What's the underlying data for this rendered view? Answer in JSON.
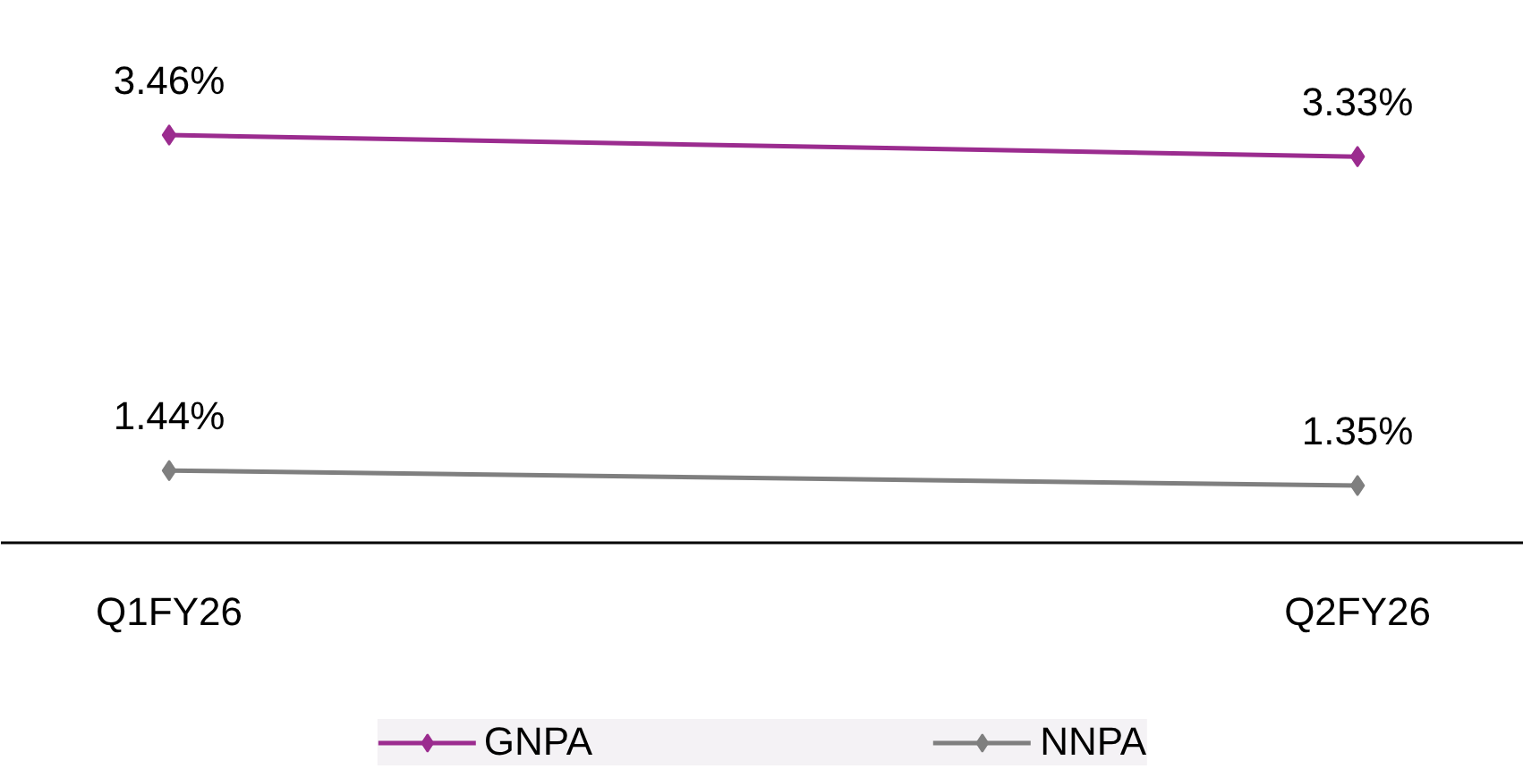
{
  "chart_data": {
    "type": "line",
    "categories": [
      "Q1FY26",
      "Q2FY26"
    ],
    "series": [
      {
        "name": "GNPA",
        "color": "#9b2c8f",
        "values": [
          3.46,
          3.33
        ],
        "value_labels": [
          "3.46%",
          "3.33%"
        ]
      },
      {
        "name": "NNPA",
        "color": "#7f7f7f",
        "values": [
          1.44,
          1.35
        ],
        "value_labels": [
          "1.44%",
          "1.35%"
        ]
      }
    ],
    "marker": "diamond",
    "line_style": "solid",
    "legend": "bottom"
  }
}
